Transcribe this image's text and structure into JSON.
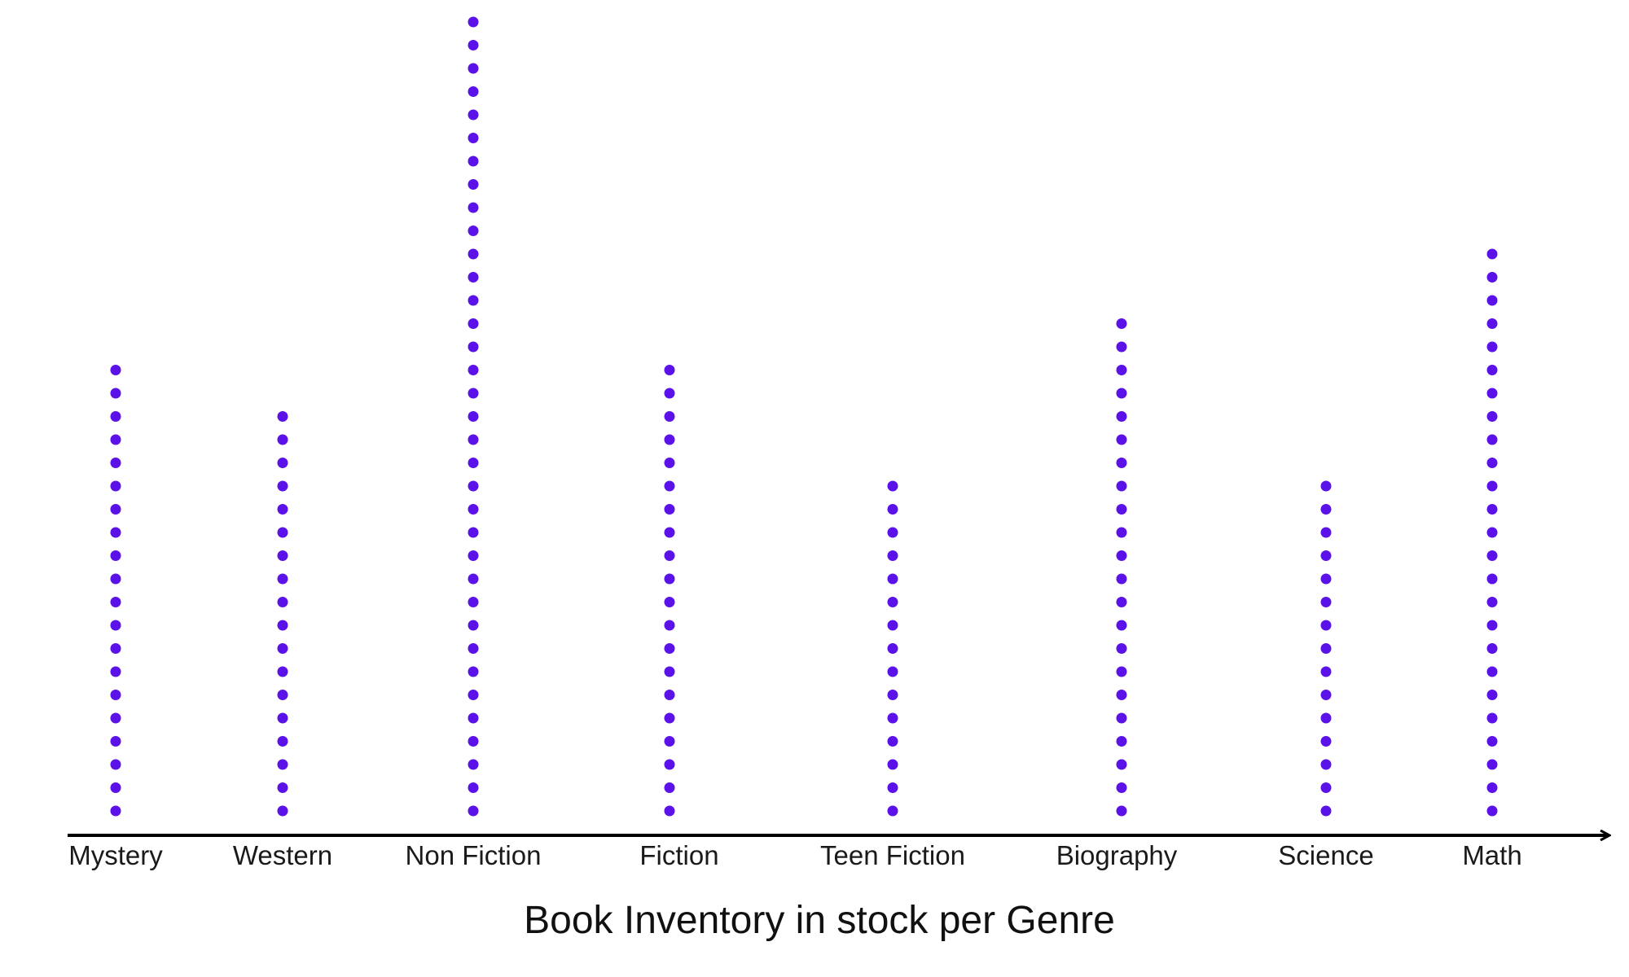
{
  "chart_data": {
    "type": "scatter",
    "title": "Book Inventory in stock per Genre",
    "xlabel": "",
    "ylabel": "",
    "categories": [
      "Mystery",
      "Western",
      "Non Fiction",
      "Fiction",
      "Teen Fiction",
      "Biography",
      "Science",
      "Math"
    ],
    "values": [
      20,
      18,
      35,
      20,
      15,
      22,
      15,
      25
    ],
    "grid": false,
    "legend": "none",
    "dot_color": "#5b12e8",
    "axis_color": "#000000"
  }
}
